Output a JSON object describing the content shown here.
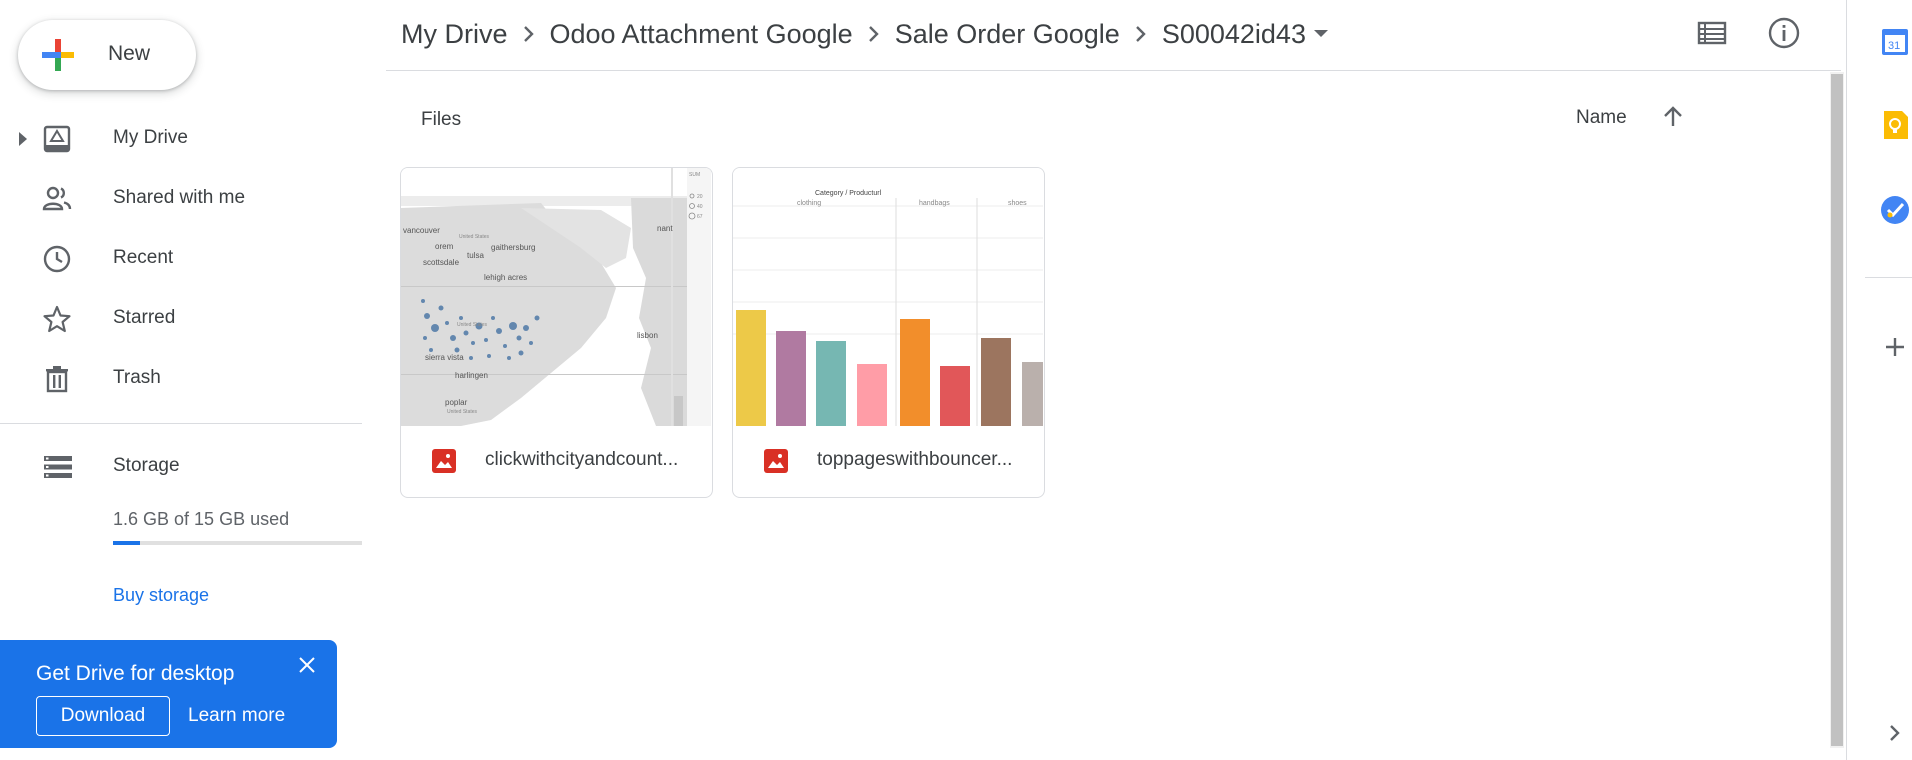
{
  "sidebar": {
    "new_label": "New",
    "nav": [
      {
        "label": "My Drive",
        "icon": "drive-icon"
      },
      {
        "label": "Shared with me",
        "icon": "people-icon"
      },
      {
        "label": "Recent",
        "icon": "clock-icon"
      },
      {
        "label": "Starred",
        "icon": "star-icon"
      },
      {
        "label": "Trash",
        "icon": "trash-icon"
      }
    ],
    "storage": {
      "label": "Storage",
      "used_text": "1.6 GB of 15 GB used",
      "used_fraction": 0.107,
      "buy_label": "Buy storage"
    },
    "promo": {
      "title": "Get Drive for desktop",
      "download_label": "Download",
      "learn_label": "Learn more"
    }
  },
  "header": {
    "breadcrumb": [
      "My Drive",
      "Odoo Attachment Google",
      "Sale Order Google",
      "S00042id43"
    ]
  },
  "main": {
    "section_label": "Files",
    "sort_label": "Name",
    "files": [
      {
        "name": "clickwithcityandcount...",
        "type": "image"
      },
      {
        "name": "toppageswithbouncer...",
        "type": "image"
      }
    ],
    "thumb_map": {
      "labels": [
        "vancouver",
        "orem",
        "scottsdale",
        "tulsa",
        "gaithersburg",
        "lehigh acres",
        "sierra vista",
        "harlingen",
        "poplar",
        "nant",
        "lisbon",
        "United States",
        "United States",
        "United States",
        "SUM",
        "20",
        "40",
        "67"
      ]
    },
    "thumb_bar": {
      "header": "Category / Producturl",
      "columns": [
        "clothing",
        "handbags",
        "shoes"
      ],
      "bar_colors": [
        "#edc948",
        "#b07aa1",
        "#76b7b2",
        "#ff9da7",
        "#f28e2b",
        "#e15759",
        "#9c755f",
        "#bab0ac"
      ]
    }
  },
  "colors": {
    "accent": "#1a73e8",
    "pdf_image_red": "#d93025"
  }
}
